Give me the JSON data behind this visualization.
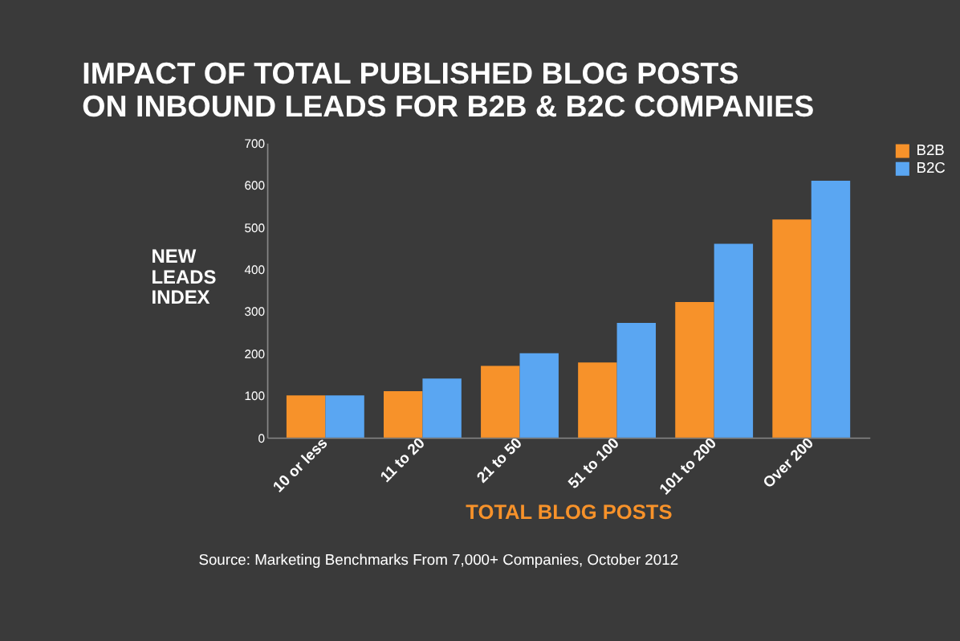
{
  "chart_data": {
    "type": "bar",
    "title": "IMPACT OF TOTAL PUBLISHED BLOG POSTS ON INBOUND LEADS FOR B2B & B2C COMPANIES",
    "xlabel": "TOTAL BLOG POSTS",
    "ylabel": "NEW LEADS INDEX",
    "categories": [
      "10 or less",
      "11 to 20",
      "21 to 50",
      "51 to 100",
      "101 to 200",
      "Over 200"
    ],
    "series": [
      {
        "name": "B2B",
        "color": "#f7922a",
        "values": [
          100,
          110,
          170,
          178,
          322,
          518
        ]
      },
      {
        "name": "B2C",
        "color": "#5aa6f2",
        "values": [
          100,
          140,
          200,
          272,
          460,
          610
        ]
      }
    ],
    "ylim": [
      0,
      700
    ],
    "yticks": [
      0,
      100,
      200,
      300,
      400,
      500,
      600,
      700
    ],
    "grid": false,
    "legend": "right",
    "annotations": [
      "Source: Marketing Benchmarks From 7,000+ Companies, October 2012"
    ]
  }
}
